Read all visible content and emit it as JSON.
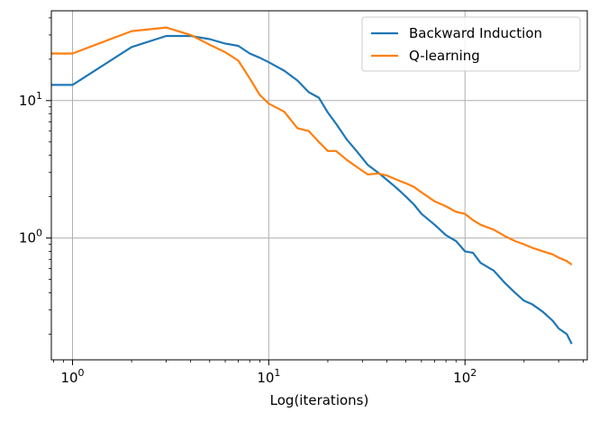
{
  "chart_data": {
    "type": "line",
    "title": "",
    "xlabel": "Log(iterations)",
    "ylabel": "",
    "xscale": "log",
    "yscale": "log",
    "xlim": [
      0.78,
      420
    ],
    "ylim": [
      0.13,
      45
    ],
    "grid": true,
    "legend_position": "top-right",
    "x_ticks": [
      {
        "value": 1,
        "base": "10",
        "exp": "0"
      },
      {
        "value": 10,
        "base": "10",
        "exp": "1"
      },
      {
        "value": 100,
        "base": "10",
        "exp": "2"
      }
    ],
    "y_ticks": [
      {
        "value": 1,
        "base": "10",
        "exp": "0"
      },
      {
        "value": 10,
        "base": "10",
        "exp": "1"
      }
    ],
    "series": [
      {
        "name": "Backward Induction",
        "color": "#1f77b4",
        "x": [
          0.78,
          1,
          2,
          3,
          4,
          5,
          6,
          7,
          8,
          9,
          10,
          12,
          14,
          16,
          18,
          20,
          22,
          25,
          28,
          32,
          36,
          40,
          45,
          50,
          55,
          60,
          70,
          80,
          90,
          100,
          110,
          120,
          140,
          160,
          180,
          200,
          220,
          250,
          280,
          300,
          330,
          350
        ],
        "y": [
          13,
          13,
          24.5,
          29.5,
          29.5,
          28,
          26,
          25,
          22,
          20.5,
          19,
          16.5,
          14,
          11.5,
          10.5,
          8.2,
          6.8,
          5.2,
          4.3,
          3.4,
          3.0,
          2.65,
          2.3,
          2.0,
          1.75,
          1.5,
          1.25,
          1.05,
          0.95,
          0.8,
          0.78,
          0.66,
          0.58,
          0.47,
          0.4,
          0.35,
          0.33,
          0.29,
          0.25,
          0.22,
          0.2,
          0.17
        ]
      },
      {
        "name": "Q-learning",
        "color": "#ff7f0e",
        "x": [
          0.78,
          1,
          2,
          3,
          4,
          5,
          6,
          7,
          8,
          9,
          10,
          12,
          14,
          16,
          18,
          20,
          22,
          25,
          28,
          32,
          36,
          40,
          45,
          50,
          55,
          60,
          70,
          80,
          90,
          100,
          110,
          120,
          140,
          160,
          180,
          200,
          220,
          250,
          280,
          300,
          330,
          350
        ],
        "y": [
          22,
          22,
          32,
          34,
          30,
          25.5,
          22.5,
          19.5,
          14.5,
          11,
          9.5,
          8.3,
          6.3,
          6.0,
          5.0,
          4.3,
          4.3,
          3.7,
          3.3,
          2.9,
          2.95,
          2.85,
          2.65,
          2.5,
          2.35,
          2.15,
          1.85,
          1.7,
          1.55,
          1.5,
          1.35,
          1.25,
          1.15,
          1.03,
          0.95,
          0.9,
          0.85,
          0.8,
          0.76,
          0.72,
          0.68,
          0.64
        ]
      }
    ]
  }
}
